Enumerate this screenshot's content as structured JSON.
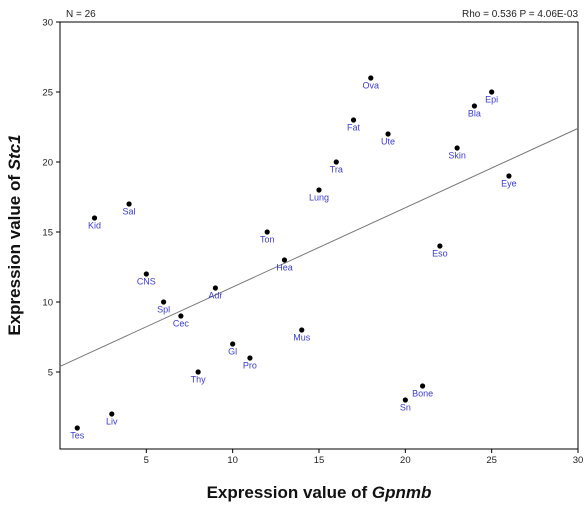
{
  "chart_data": {
    "type": "scatter",
    "n_text": "N = 26",
    "stats_text": "Rho = 0.536 P = 4.06E-03",
    "xlabel_prefix": "Expression value of ",
    "xlabel_gene": "Gpnmb",
    "ylabel_prefix": "Expression value of ",
    "ylabel_gene": "Stc1",
    "xlim": [
      0,
      30
    ],
    "ylim": [
      -0.5,
      30
    ],
    "xticks": [
      "5",
      "10",
      "15",
      "20",
      "25",
      "30"
    ],
    "yticks": [
      "5",
      "10",
      "15",
      "20",
      "25",
      "30"
    ],
    "grid": false,
    "point_color": "#000000",
    "label_color": "#3a3ad6",
    "fit_line": {
      "slope": 0.5667,
      "intercept": 5.4,
      "color": "#777777"
    },
    "points": [
      {
        "label": "Tes",
        "x": 1,
        "y": 1
      },
      {
        "label": "Kid",
        "x": 2,
        "y": 16
      },
      {
        "label": "Liv",
        "x": 3,
        "y": 2
      },
      {
        "label": "Sal",
        "x": 4,
        "y": 17
      },
      {
        "label": "CNS",
        "x": 5,
        "y": 12
      },
      {
        "label": "Spl",
        "x": 6,
        "y": 10
      },
      {
        "label": "Cec",
        "x": 7,
        "y": 9
      },
      {
        "label": "Thy",
        "x": 8,
        "y": 5
      },
      {
        "label": "Adr",
        "x": 9,
        "y": 11
      },
      {
        "label": "Gl",
        "x": 10,
        "y": 7
      },
      {
        "label": "Pro",
        "x": 11,
        "y": 6
      },
      {
        "label": "Ton",
        "x": 12,
        "y": 15
      },
      {
        "label": "Hea",
        "x": 13,
        "y": 13
      },
      {
        "label": "Mus",
        "x": 14,
        "y": 8
      },
      {
        "label": "Lung",
        "x": 15,
        "y": 18
      },
      {
        "label": "Tra",
        "x": 16,
        "y": 20
      },
      {
        "label": "Fat",
        "x": 17,
        "y": 23
      },
      {
        "label": "Ova",
        "x": 18,
        "y": 26
      },
      {
        "label": "Ute",
        "x": 19,
        "y": 22
      },
      {
        "label": "Sn",
        "x": 20,
        "y": 3
      },
      {
        "label": "Bone",
        "x": 21,
        "y": 4
      },
      {
        "label": "Eso",
        "x": 22,
        "y": 14
      },
      {
        "label": "Skin",
        "x": 23,
        "y": 21
      },
      {
        "label": "Bla",
        "x": 24,
        "y": 24
      },
      {
        "label": "Epi",
        "x": 25,
        "y": 25
      },
      {
        "label": "Eye",
        "x": 26,
        "y": 19
      }
    ]
  }
}
